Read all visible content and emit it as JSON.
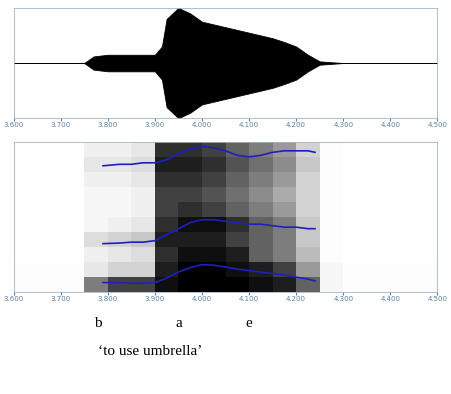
{
  "chart_data": [
    {
      "type": "waveform",
      "x": [
        3.6,
        3.65,
        3.7,
        3.75,
        3.77,
        3.8,
        3.85,
        3.9,
        3.915,
        3.925,
        3.95,
        3.975,
        4.0,
        4.025,
        4.05,
        4.075,
        4.1,
        4.125,
        4.15,
        4.175,
        4.2,
        4.225,
        4.25,
        4.3,
        4.35,
        4.4,
        4.45,
        4.5
      ],
      "values": [
        0.0,
        0.0,
        0.0,
        0.0,
        0.12,
        0.15,
        0.15,
        0.15,
        0.3,
        0.8,
        1.0,
        0.9,
        0.75,
        0.7,
        0.65,
        0.6,
        0.55,
        0.5,
        0.45,
        0.38,
        0.3,
        0.15,
        0.03,
        0.0,
        0.0,
        0.0,
        0.0,
        0.0
      ],
      "color": "#000000",
      "xlim": [
        3.6,
        4.5
      ],
      "ylim": [
        -1,
        1
      ],
      "xticks": [
        {
          "value": 3.6,
          "label": "3.600"
        },
        {
          "value": 3.7,
          "label": "3.700"
        },
        {
          "value": 3.8,
          "label": "3.800"
        },
        {
          "value": 3.9,
          "label": "3.900"
        },
        {
          "value": 4.0,
          "label": "4.000"
        },
        {
          "value": 4.1,
          "label": "4.100"
        },
        {
          "value": 4.2,
          "label": "4.200"
        },
        {
          "value": 4.3,
          "label": "4.300"
        },
        {
          "value": 4.4,
          "label": "4.400"
        },
        {
          "value": 4.5,
          "label": "4.500"
        }
      ],
      "tick_labels": "x"
    },
    {
      "type": "spectrogram",
      "time_bins": [
        3.6,
        3.65,
        3.7,
        3.75,
        3.8,
        3.85,
        3.9,
        3.95,
        4.0,
        4.05,
        4.1,
        4.15,
        4.2,
        4.25,
        4.3,
        4.35,
        4.4,
        4.45,
        4.5
      ],
      "freq_bins": [
        0,
        500,
        1000,
        1500,
        2000,
        2500,
        3000,
        3500,
        4000,
        4500,
        5000
      ],
      "cells": [
        [
          0.05,
          0.05,
          0.05,
          0.6,
          0.8,
          0.8,
          0.95,
          1.0,
          1.0,
          1.0,
          0.95,
          0.9,
          0.7,
          0.1,
          0.05,
          0.05,
          0.05,
          0.05
        ],
        [
          0.05,
          0.05,
          0.05,
          0.2,
          0.3,
          0.3,
          0.9,
          1.0,
          1.0,
          0.95,
          0.9,
          0.8,
          0.5,
          0.1,
          0.05,
          0.05,
          0.05,
          0.05
        ],
        [
          0.03,
          0.03,
          0.03,
          0.15,
          0.2,
          0.25,
          0.85,
          0.95,
          0.95,
          0.9,
          0.7,
          0.6,
          0.4,
          0.05,
          0.03,
          0.03,
          0.03,
          0.03
        ],
        [
          0.03,
          0.03,
          0.03,
          0.25,
          0.3,
          0.35,
          0.9,
          0.9,
          0.9,
          0.8,
          0.7,
          0.6,
          0.35,
          0.05,
          0.03,
          0.03,
          0.03,
          0.03
        ],
        [
          0.03,
          0.03,
          0.03,
          0.1,
          0.15,
          0.2,
          0.85,
          0.95,
          0.95,
          0.85,
          0.7,
          0.6,
          0.35,
          0.05,
          0.03,
          0.03,
          0.03,
          0.03
        ],
        [
          0.03,
          0.03,
          0.03,
          0.1,
          0.1,
          0.15,
          0.8,
          0.85,
          0.8,
          0.7,
          0.6,
          0.5,
          0.3,
          0.05,
          0.03,
          0.03,
          0.03,
          0.03
        ],
        [
          0.03,
          0.03,
          0.03,
          0.1,
          0.1,
          0.15,
          0.8,
          0.8,
          0.75,
          0.65,
          0.55,
          0.45,
          0.3,
          0.05,
          0.03,
          0.03,
          0.03,
          0.03
        ],
        [
          0.03,
          0.03,
          0.03,
          0.15,
          0.15,
          0.2,
          0.85,
          0.85,
          0.8,
          0.7,
          0.6,
          0.5,
          0.3,
          0.05,
          0.03,
          0.03,
          0.03,
          0.03
        ],
        [
          0.03,
          0.03,
          0.03,
          0.2,
          0.2,
          0.25,
          0.9,
          0.9,
          0.85,
          0.75,
          0.65,
          0.55,
          0.35,
          0.05,
          0.03,
          0.03,
          0.03,
          0.03
        ],
        [
          0.03,
          0.03,
          0.03,
          0.15,
          0.15,
          0.2,
          0.85,
          0.85,
          0.8,
          0.7,
          0.6,
          0.5,
          0.3,
          0.05,
          0.03,
          0.03,
          0.03,
          0.03
        ]
      ],
      "x": [
        3.79,
        3.825,
        3.85,
        3.875,
        3.9,
        3.925,
        3.95,
        3.975,
        4.0,
        4.025,
        4.05,
        4.075,
        4.1,
        4.125,
        4.15,
        4.175,
        4.2,
        4.225,
        4.24
      ],
      "series": [
        {
          "color": "#1f1fbf",
          "values": [
            300,
            300,
            280,
            280,
            300,
            450,
            650,
            800,
            900,
            880,
            820,
            750,
            700,
            650,
            600,
            550,
            480,
            420,
            350
          ]
        },
        {
          "color": "#1f1fbf",
          "values": [
            1600,
            1620,
            1650,
            1650,
            1700,
            1900,
            2100,
            2300,
            2400,
            2400,
            2350,
            2300,
            2250,
            2250,
            2200,
            2150,
            2150,
            2100,
            2100
          ]
        },
        {
          "color": "#1f1fbf",
          "values": [
            4200,
            4250,
            4250,
            4300,
            4300,
            4400,
            4600,
            4750,
            4850,
            4800,
            4700,
            4550,
            4500,
            4550,
            4650,
            4700,
            4700,
            4700,
            4650
          ]
        }
      ],
      "xlim": [
        3.6,
        4.5
      ],
      "ylim": [
        0,
        5000
      ],
      "xticks": [
        {
          "value": 3.6,
          "label": "3.600"
        },
        {
          "value": 3.7,
          "label": "3.700"
        },
        {
          "value": 3.8,
          "label": "3.800"
        },
        {
          "value": 3.9,
          "label": "3.900"
        },
        {
          "value": 4.0,
          "label": "4.000"
        },
        {
          "value": 4.1,
          "label": "4.100"
        },
        {
          "value": 4.2,
          "label": "4.200"
        },
        {
          "value": 4.3,
          "label": "4.300"
        },
        {
          "value": 4.4,
          "label": "4.400"
        },
        {
          "value": 4.5,
          "label": "4.500"
        }
      ],
      "tick_labels": "x"
    }
  ],
  "transcription": {
    "segments": [
      {
        "label": "b",
        "time": 3.78
      },
      {
        "label": "a",
        "time": 3.95
      },
      {
        "label": "e",
        "time": 4.1
      }
    ],
    "gloss": "‘to use umbrella’"
  }
}
